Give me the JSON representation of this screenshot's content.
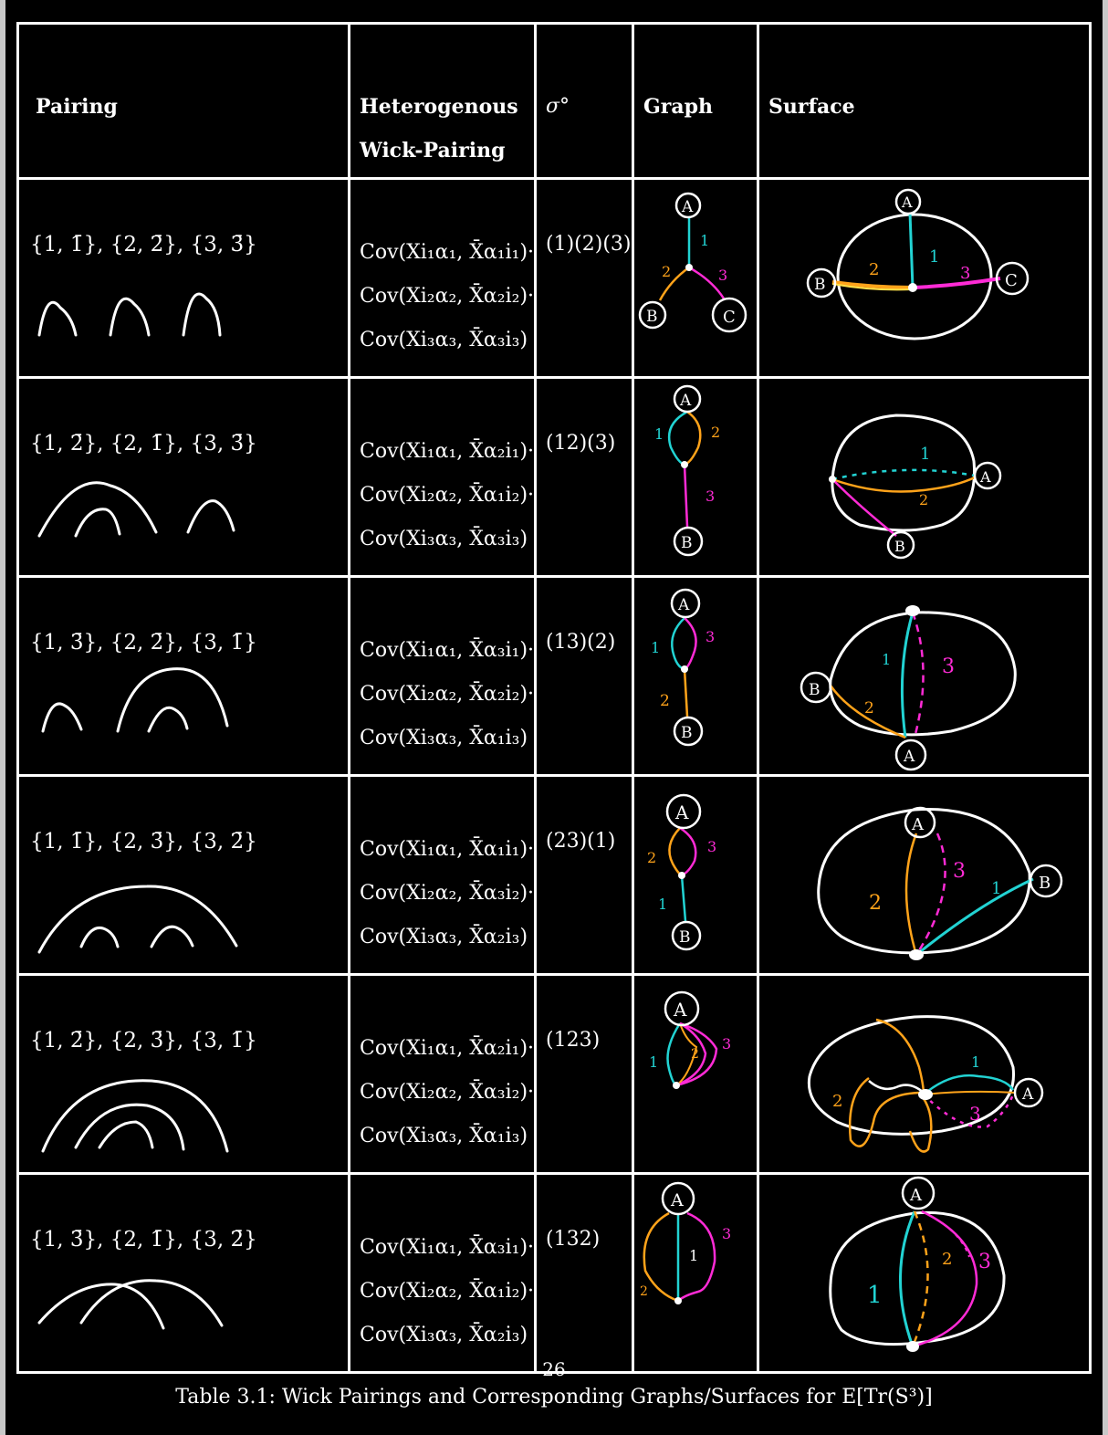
{
  "headers": {
    "pairing": "Pairing",
    "wick_line1": "Heterogenous",
    "wick_line2": "Wick-Pairing",
    "sigma": "σ°",
    "graph": "Graph",
    "surface": "Surface"
  },
  "rows": [
    {
      "pairing": "{1, 1̄}, {2, 2̄}, {3, 3̄}",
      "cov": [
        "Cov(Xi₁α₁, X̄α₁i₁)·",
        "Cov(Xi₂α₂, X̄α₂i₂)·",
        "Cov(Xi₃α₃, X̄α₃i₃)"
      ],
      "sigma": "(1)(2)(3)"
    },
    {
      "pairing": "{1, 2̄}, {2, 1̄}, {3, 3̄}",
      "cov": [
        "Cov(Xi₁α₁, X̄α₂i₁)·",
        "Cov(Xi₂α₂, X̄α₁i₂)·",
        "Cov(Xi₃α₃, X̄α₃i₃)"
      ],
      "sigma": "(12)(3)"
    },
    {
      "pairing": "{1, 3̄}, {2, 2̄}, {3, 1̄}",
      "cov": [
        "Cov(Xi₁α₁, X̄α₃i₁)·",
        "Cov(Xi₂α₂, X̄α₂i₂)·",
        "Cov(Xi₃α₃, X̄α₁i₃)"
      ],
      "sigma": "(13)(2)"
    },
    {
      "pairing": "{1, 1̄}, {2, 3̄}, {3, 2̄}",
      "cov": [
        "Cov(Xi₁α₁, X̄α₁i₁)·",
        "Cov(Xi₂α₂, X̄α₃i₂)·",
        "Cov(Xi₃α₃, X̄α₂i₃)"
      ],
      "sigma": "(23)(1)"
    },
    {
      "pairing": "{1, 2̄}, {2, 3̄}, {3, 1̄}",
      "cov": [
        "Cov(Xi₁α₁, X̄α₂i₁)·",
        "Cov(Xi₂α₂, X̄α₃i₂)·",
        "Cov(Xi₃α₃, X̄α₁i₃)"
      ],
      "sigma": "(123)"
    },
    {
      "pairing": "{1, 3̄}, {2, 1̄}, {3, 2̄}",
      "cov": [
        "Cov(Xi₁α₁, X̄α₃i₁)·",
        "Cov(Xi₂α₂, X̄α₁i₂)·",
        "Cov(Xi₃α₃, X̄α₂i₃)"
      ],
      "sigma": "(132)"
    }
  ],
  "labels": {
    "A": "A",
    "B": "B",
    "C": "C",
    "one": "1",
    "two": "2",
    "three": "3"
  },
  "colors": {
    "edge1": "#22d3d3",
    "edge2": "#ffa31a",
    "edge3": "#ff2bd6",
    "ink": "#ffffff"
  },
  "page_number": "26",
  "caption": "Table 3.1: Wick Pairings and Corresponding Graphs/Surfaces for E[Tr(S³)]"
}
